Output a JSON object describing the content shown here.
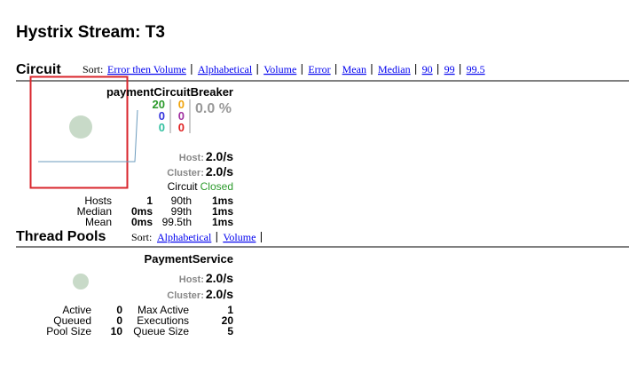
{
  "header": {
    "title": "Hystrix Stream: T3"
  },
  "circuit": {
    "heading": "Circuit",
    "sort_label": "Sort:",
    "sort_links": [
      "Error then Volume",
      "Alphabetical",
      "Volume",
      "Error",
      "Mean",
      "Median",
      "90",
      "99",
      "99.5"
    ],
    "card": {
      "name": "paymentCircuitBreaker",
      "counts_left": [
        "20",
        "0",
        "0"
      ],
      "counts_right": [
        "0",
        "0",
        "0"
      ],
      "error_rate": "0.0 %",
      "host_label": "Host:",
      "host_rate": "2.0/s",
      "cluster_label": "Cluster:",
      "cluster_rate": "2.0/s",
      "circuit_label": "Circuit",
      "circuit_status": "Closed",
      "stats": [
        [
          "Hosts",
          "1",
          "90th",
          "1ms"
        ],
        [
          "Median",
          "0ms",
          "99th",
          "1ms"
        ],
        [
          "Mean",
          "0ms",
          "99.5th",
          "1ms"
        ]
      ]
    }
  },
  "thread_pools": {
    "heading": "Thread Pools",
    "sort_label": "Sort:",
    "sort_links": [
      "Alphabetical",
      "Volume"
    ],
    "card": {
      "name": "PaymentService",
      "host_label": "Host:",
      "host_rate": "2.0/s",
      "cluster_label": "Cluster:",
      "cluster_rate": "2.0/s",
      "stats": [
        [
          "Active",
          "0",
          "Max Active",
          "1"
        ],
        [
          "Queued",
          "0",
          "Executions",
          "20"
        ],
        [
          "Pool Size",
          "10",
          "Queue Size",
          "5"
        ]
      ]
    }
  }
}
